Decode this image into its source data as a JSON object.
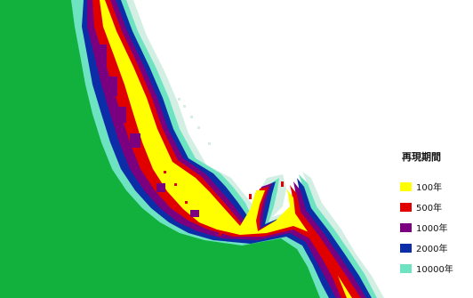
{
  "map": {
    "colors": {
      "land": "#12b03c",
      "sea": "#ffffff",
      "coast_fringe": "#d3efe4"
    }
  },
  "legend": {
    "title": "再現期間",
    "items": [
      {
        "label": "100年",
        "color": "#ffff00"
      },
      {
        "label": "500年",
        "color": "#e00000"
      },
      {
        "label": "1000年",
        "color": "#7a007f"
      },
      {
        "label": "2000年",
        "color": "#0b2ea8"
      },
      {
        "label": "10000年",
        "color": "#6de3c2"
      }
    ]
  }
}
